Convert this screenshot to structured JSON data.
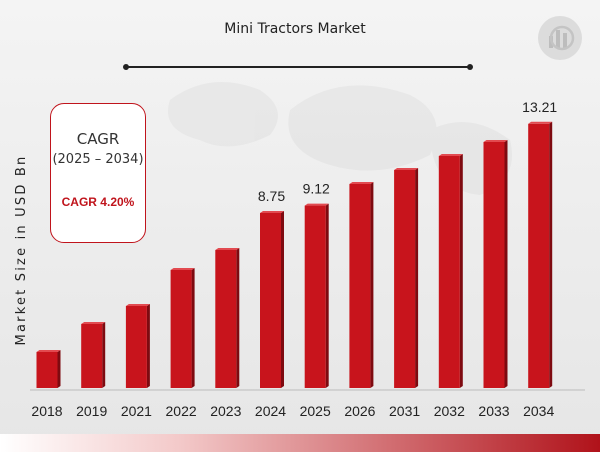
{
  "chart_data": {
    "type": "bar",
    "title": "Mini Tractors Market",
    "ylabel": "Market Size in USD Bn",
    "xlabel": "",
    "categories": [
      "2018",
      "2019",
      "2021",
      "2022",
      "2023",
      "2024",
      "2025",
      "2026",
      "2031",
      "2032",
      "2033",
      "2034"
    ],
    "values": [
      1.8,
      3.2,
      4.1,
      5.9,
      6.9,
      8.75,
      9.12,
      10.2,
      10.9,
      11.6,
      12.3,
      13.21
    ],
    "labels": [
      "",
      "",
      "",
      "",
      "",
      "8.75",
      "9.12",
      "",
      "",
      "",
      "",
      "13.21"
    ],
    "ylim": [
      0,
      13.8
    ],
    "bar_color": "#c8141c",
    "grid": false
  },
  "cagr": {
    "title": "CAGR",
    "period": "(2025 – 2034)",
    "value": "CAGR 4.20%"
  },
  "colors": {
    "accent": "#c0141c",
    "background": "#efefef"
  }
}
